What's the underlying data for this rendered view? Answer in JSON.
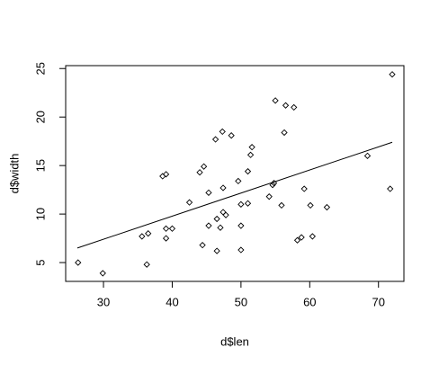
{
  "chart_data": {
    "type": "scatter",
    "x_label": "d$len",
    "y_label": "d$width",
    "x": [
      26.3,
      29.9,
      35.6,
      36.5,
      36.3,
      38.6,
      39.1,
      39.1,
      39.1,
      40.0,
      42.5,
      44.0,
      44.6,
      44.4,
      45.3,
      45.3,
      46.5,
      46.3,
      46.5,
      47.0,
      47.3,
      47.4,
      47.4,
      47.8,
      48.6,
      49.6,
      50.0,
      50.0,
      50.0,
      51.0,
      51.0,
      51.4,
      51.6,
      54.1,
      54.6,
      54.8,
      55.0,
      55.9,
      56.3,
      56.5,
      57.7,
      58.2,
      58.8,
      59.2,
      60.1,
      60.4,
      62.5,
      68.4,
      71.7,
      72.0
    ],
    "values": [
      5.0,
      3.9,
      7.7,
      8.0,
      4.8,
      13.9,
      14.1,
      7.5,
      8.5,
      8.5,
      11.2,
      14.3,
      14.9,
      6.8,
      12.2,
      8.8,
      9.5,
      17.7,
      6.2,
      8.6,
      18.5,
      12.7,
      10.2,
      9.9,
      18.1,
      13.4,
      6.3,
      8.8,
      11.0,
      11.1,
      14.4,
      16.1,
      16.9,
      11.8,
      13.0,
      13.2,
      21.7,
      10.9,
      18.4,
      21.2,
      21.0,
      7.3,
      7.6,
      12.6,
      10.9,
      7.7,
      10.7,
      16.0,
      12.6,
      24.4
    ],
    "fit_line": {
      "x": [
        26.2,
        72.0
      ],
      "y": [
        6.5,
        17.4
      ]
    },
    "color": "#000000",
    "xlim": [
      24.5,
      73.7
    ],
    "ylim": [
      3.06,
      25.3
    ],
    "xticks": [
      30,
      40,
      50,
      60,
      70
    ],
    "yticks": [
      5,
      10,
      15,
      20,
      25
    ]
  }
}
